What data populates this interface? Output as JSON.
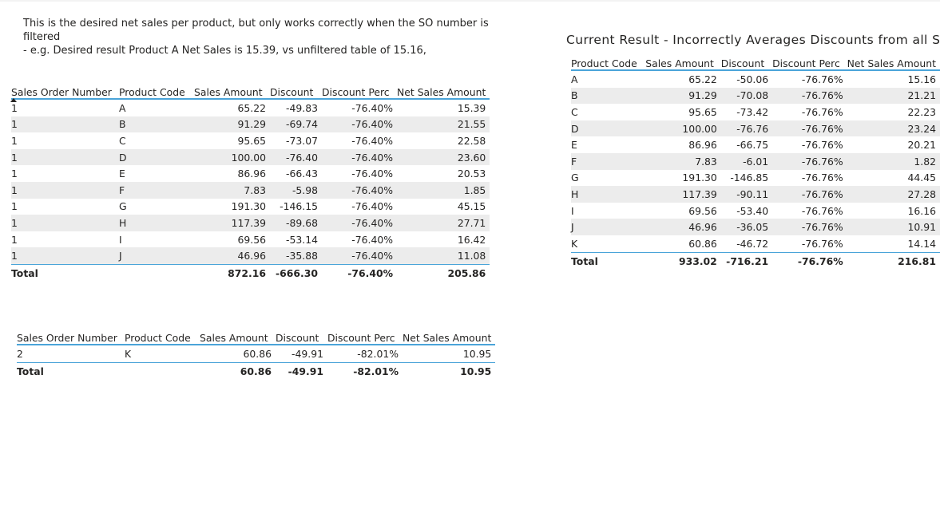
{
  "note": {
    "line1": "This is the desired net sales per product, but only works correctly when the SO number is filtered",
    "line2": "- e.g. Desired result Product A Net Sales is 15.39,  vs unfiltered table of 15.16,"
  },
  "table1": {
    "headers": [
      "Sales Order Number",
      "Product Code",
      "Sales Amount",
      "Discount",
      "Discount Perc",
      "Net Sales Amount"
    ],
    "rows": [
      [
        "1",
        "A",
        "65.22",
        "-49.83",
        "-76.40%",
        "15.39"
      ],
      [
        "1",
        "B",
        "91.29",
        "-69.74",
        "-76.40%",
        "21.55"
      ],
      [
        "1",
        "C",
        "95.65",
        "-73.07",
        "-76.40%",
        "22.58"
      ],
      [
        "1",
        "D",
        "100.00",
        "-76.40",
        "-76.40%",
        "23.60"
      ],
      [
        "1",
        "E",
        "86.96",
        "-66.43",
        "-76.40%",
        "20.53"
      ],
      [
        "1",
        "F",
        "7.83",
        "-5.98",
        "-76.40%",
        "1.85"
      ],
      [
        "1",
        "G",
        "191.30",
        "-146.15",
        "-76.40%",
        "45.15"
      ],
      [
        "1",
        "H",
        "117.39",
        "-89.68",
        "-76.40%",
        "27.71"
      ],
      [
        "1",
        "I",
        "69.56",
        "-53.14",
        "-76.40%",
        "16.42"
      ],
      [
        "1",
        "J",
        "46.96",
        "-35.88",
        "-76.40%",
        "11.08"
      ]
    ],
    "total": [
      "Total",
      "",
      "872.16",
      "-666.30",
      "-76.40%",
      "205.86"
    ]
  },
  "table2": {
    "headers": [
      "Sales Order Number",
      "Product Code",
      "Sales Amount",
      "Discount",
      "Discount Perc",
      "Net Sales Amount"
    ],
    "rows": [
      [
        "2",
        "K",
        "60.86",
        "-49.91",
        "-82.01%",
        "10.95"
      ]
    ],
    "total": [
      "Total",
      "",
      "60.86",
      "-49.91",
      "-82.01%",
      "10.95"
    ]
  },
  "table3": {
    "title": "Current Result - Incorrectly Averages Discounts from all SO",
    "headers": [
      "Product Code",
      "Sales Amount",
      "Discount",
      "Discount Perc",
      "Net Sales Amount"
    ],
    "rows": [
      [
        "A",
        "65.22",
        "-50.06",
        "-76.76%",
        "15.16"
      ],
      [
        "B",
        "91.29",
        "-70.08",
        "-76.76%",
        "21.21"
      ],
      [
        "C",
        "95.65",
        "-73.42",
        "-76.76%",
        "22.23"
      ],
      [
        "D",
        "100.00",
        "-76.76",
        "-76.76%",
        "23.24"
      ],
      [
        "E",
        "86.96",
        "-66.75",
        "-76.76%",
        "20.21"
      ],
      [
        "F",
        "7.83",
        "-6.01",
        "-76.76%",
        "1.82"
      ],
      [
        "G",
        "191.30",
        "-146.85",
        "-76.76%",
        "44.45"
      ],
      [
        "H",
        "117.39",
        "-90.11",
        "-76.76%",
        "27.28"
      ],
      [
        "I",
        "69.56",
        "-53.40",
        "-76.76%",
        "16.16"
      ],
      [
        "J",
        "46.96",
        "-36.05",
        "-76.76%",
        "10.91"
      ],
      [
        "K",
        "60.86",
        "-46.72",
        "-76.76%",
        "14.14"
      ]
    ],
    "total": [
      "Total",
      "933.02",
      "-716.21",
      "-76.76%",
      "216.81"
    ]
  },
  "colors": {
    "accent_line": "#4aa4d9",
    "alt_row": "#ececec",
    "text": "#252423"
  },
  "icons": {
    "sort": "sort-ascending-icon"
  }
}
